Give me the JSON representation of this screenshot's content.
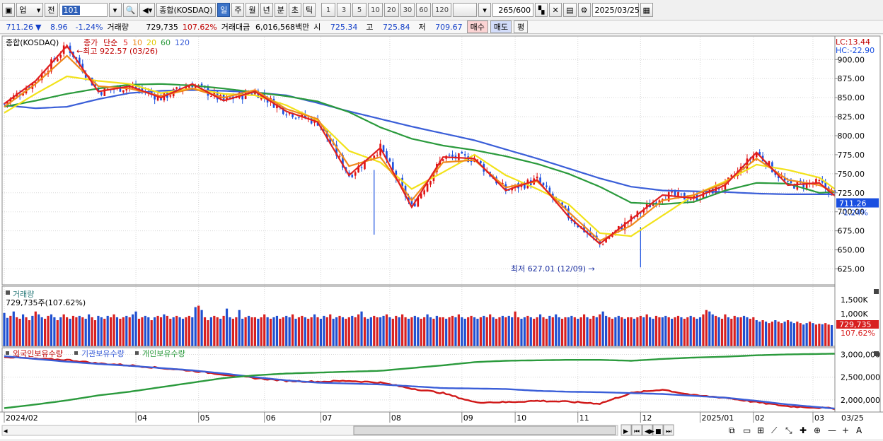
{
  "toolbar": {
    "market": "업",
    "prev": "전",
    "code": "101",
    "name": "종합(KOSDAQ)",
    "periods": [
      "일",
      "주",
      "월",
      "년",
      "분",
      "초",
      "틱"
    ],
    "selected_period": "일",
    "intervals": [
      "1",
      "3",
      "5",
      "10",
      "20",
      "30",
      "60",
      "120"
    ],
    "count": "265",
    "count_total": "/600",
    "date": "2025/03/25"
  },
  "quote": {
    "price": "711.26",
    "arrow": "▼",
    "change": "8.96",
    "change_pct": "-1.24%",
    "volume_label": "거래량",
    "volume": "729,735",
    "volume_ratio": "107.62%",
    "amount_label": "거래대금",
    "amount": "6,016,568백만",
    "open_label": "시",
    "open": "725.34",
    "high_label": "고",
    "high": "725.84",
    "low_label": "저",
    "low": "709.67",
    "buy": "매수",
    "sell": "매도",
    "avg": "평"
  },
  "chart_data": [
    {
      "type": "line",
      "title": "종합(KOSDAQ)",
      "legend": [
        "종가",
        "단순",
        "5",
        "10",
        "20",
        "60",
        "120"
      ],
      "legend_colors": {
        "close": "#c00000",
        "ma5": "#e02020",
        "ma10": "#f08a1c",
        "ma20": "#f2e21a",
        "ma60": "#2a9a3c",
        "ma120": "#3a5ed8"
      },
      "x_ticks": [
        "2024/02",
        "04",
        "05",
        "06",
        "07",
        "08",
        "09",
        "10",
        "11",
        "12",
        "2025/01",
        "02",
        "03",
        "03/25"
      ],
      "y_ticks": [
        625,
        650,
        675,
        700,
        725,
        750,
        775,
        800,
        825,
        850,
        875,
        900
      ],
      "ylim": [
        605,
        930
      ],
      "lc": "LC:13.44",
      "hc": "HC:-22.90",
      "current_price": "711.26",
      "current_pct": "-1.24%",
      "annotations": {
        "high": "최고 922.57 (03/26)",
        "low": "최저 627.01 (12/09)"
      },
      "series": [
        {
          "name": "120",
          "color": "#3a5ed8",
          "x": [
            0,
            10,
            20,
            30,
            40,
            50,
            60,
            70,
            80,
            90,
            100,
            110,
            120,
            130,
            140,
            150,
            160,
            170,
            180,
            190,
            200,
            210,
            220,
            230,
            240,
            250,
            260,
            265
          ],
          "values": [
            840,
            836,
            838,
            848,
            856,
            859,
            860,
            859,
            857,
            853,
            843,
            832,
            822,
            812,
            803,
            794,
            782,
            770,
            757,
            744,
            733,
            728,
            727,
            726,
            724,
            723,
            723,
            723
          ]
        },
        {
          "name": "60",
          "color": "#2a9a3c",
          "x": [
            0,
            10,
            20,
            30,
            40,
            50,
            60,
            70,
            80,
            90,
            100,
            110,
            120,
            130,
            140,
            150,
            160,
            170,
            180,
            190,
            200,
            210,
            220,
            230,
            240,
            250,
            260,
            265
          ],
          "values": [
            838,
            846,
            855,
            862,
            867,
            868,
            866,
            862,
            857,
            852,
            845,
            831,
            811,
            796,
            787,
            781,
            773,
            763,
            750,
            733,
            712,
            710,
            713,
            728,
            738,
            737,
            725,
            726
          ]
        },
        {
          "name": "20",
          "color": "#f2e21a",
          "x": [
            0,
            10,
            20,
            30,
            40,
            50,
            60,
            70,
            80,
            90,
            100,
            110,
            120,
            130,
            140,
            150,
            160,
            170,
            180,
            190,
            200,
            210,
            220,
            230,
            240,
            250,
            260,
            265
          ],
          "values": [
            830,
            855,
            878,
            872,
            868,
            856,
            862,
            855,
            853,
            840,
            820,
            780,
            765,
            730,
            752,
            775,
            748,
            730,
            710,
            672,
            668,
            695,
            722,
            740,
            762,
            755,
            745,
            730
          ]
        },
        {
          "name": "10",
          "color": "#f08a1c",
          "x": [
            0,
            10,
            20,
            30,
            40,
            50,
            60,
            70,
            80,
            90,
            100,
            110,
            120,
            130,
            140,
            150,
            160,
            170,
            180,
            190,
            200,
            210,
            220,
            230,
            240,
            250,
            260,
            265
          ],
          "values": [
            838,
            868,
            905,
            865,
            862,
            852,
            862,
            850,
            860,
            835,
            822,
            760,
            772,
            715,
            765,
            768,
            732,
            740,
            700,
            662,
            682,
            715,
            722,
            738,
            770,
            742,
            735,
            726
          ]
        },
        {
          "name": "5",
          "color": "#e02020",
          "x": [
            0,
            10,
            20,
            30,
            40,
            50,
            60,
            70,
            80,
            90,
            100,
            110,
            120,
            130,
            140,
            150,
            160,
            170,
            180,
            190,
            200,
            210,
            220,
            230,
            240,
            250,
            260,
            265
          ],
          "values": [
            842,
            872,
            918,
            858,
            865,
            850,
            868,
            846,
            858,
            832,
            818,
            748,
            784,
            706,
            772,
            770,
            728,
            742,
            694,
            658,
            690,
            722,
            718,
            735,
            778,
            735,
            738,
            721
          ]
        }
      ]
    },
    {
      "type": "bar",
      "title": "거래량",
      "label": "729,735주(107.62%)",
      "y_ticks": [
        "1,500K",
        "1,000K"
      ],
      "current": "729,735",
      "current_pct": "107.62%",
      "ylim": [
        0,
        1900
      ],
      "values": [
        1150,
        980,
        1050,
        1200,
        1000,
        950,
        1100,
        1000,
        900,
        1050,
        1200,
        1100,
        1000,
        950,
        1050,
        1100,
        1000,
        900,
        1000,
        1100,
        1000,
        950,
        1050,
        1000,
        1050,
        1000,
        950,
        1100,
        1000,
        900,
        1050,
        1000,
        950,
        1050,
        1000,
        1100,
        1000,
        950,
        1000,
        1050,
        1000,
        1100,
        1200,
        950,
        1000,
        1050,
        1000,
        900,
        1000,
        1050,
        1000,
        1100,
        1050,
        950,
        1000,
        1050,
        1000,
        950,
        1000,
        1050,
        1000,
        1350,
        1400,
        1250,
        1000,
        900,
        1000,
        1050,
        1000,
        950,
        1050,
        1300,
        1000,
        950,
        1000,
        1250,
        950,
        1000,
        1050,
        1000,
        1000,
        950,
        1000,
        1100,
        1000,
        950,
        1000,
        1050,
        950,
        1000,
        1050,
        1000,
        1100,
        950,
        1000,
        1050,
        1000,
        950,
        1000,
        1100,
        1000,
        950,
        1050,
        1000,
        1100,
        950,
        1000,
        1050,
        1000,
        950,
        1000,
        1050,
        1000,
        1100,
        1200,
        1000,
        950,
        1000,
        1050,
        1000,
        1000,
        1050,
        1100,
        1000,
        950,
        1050,
        1000,
        1100,
        1000,
        950,
        1000,
        1050,
        1000,
        950,
        1000,
        1100,
        1000,
        950,
        1050,
        1000,
        1000,
        950,
        1000,
        1050,
        1000,
        1100,
        1000,
        950,
        1000,
        1050,
        1000,
        950,
        1000,
        1050,
        1000,
        1100,
        1000,
        950,
        1000,
        1050,
        1000,
        1050,
        1000,
        1200,
        1000,
        950,
        1000,
        1050,
        1000,
        950,
        1000,
        1100,
        1000,
        950,
        1050,
        1000,
        1100,
        1000,
        950,
        1000,
        1000,
        1050,
        1000,
        950,
        1000,
        1100,
        1000,
        950,
        1050,
        1000,
        1100,
        1200,
        1050,
        1000,
        950,
        1000,
        1050,
        1000,
        950,
        1000,
        1000,
        950,
        1000,
        1050,
        1000,
        1100,
        1000,
        950,
        1050,
        1000,
        1000,
        1050,
        1000,
        950,
        1000,
        1050,
        1000,
        950,
        1000,
        1050,
        1000,
        950,
        1000,
        1100,
        1250,
        1200,
        1100,
        1050,
        1000,
        950,
        1100,
        1000,
        950,
        1050,
        1000,
        1000,
        1050,
        1000,
        950,
        1000,
        900,
        850,
        900,
        850,
        800,
        850,
        900,
        850,
        800,
        850,
        900,
        850,
        800,
        850,
        800,
        750,
        800,
        850,
        800,
        750,
        780,
        760,
        800,
        750,
        730
      ]
    },
    {
      "type": "line",
      "legend": [
        "외국인보유수량",
        "기관보유수량",
        "개인보유수량"
      ],
      "y_ticks": [
        "3,000,000",
        "2,500,000",
        "2,000,000"
      ],
      "ylim": [
        1750000,
        3100000
      ],
      "series": [
        {
          "name": "외국인보유수량",
          "color": "#d01818",
          "x": [
            0,
            10,
            20,
            30,
            40,
            50,
            60,
            70,
            80,
            90,
            100,
            110,
            120,
            130,
            140,
            150,
            160,
            170,
            180,
            190,
            200,
            210,
            220,
            230,
            240,
            250,
            260,
            265
          ],
          "values": [
            2950000,
            2900000,
            2880000,
            2800000,
            2760000,
            2700000,
            2640000,
            2560000,
            2480000,
            2420000,
            2400000,
            2420000,
            2380000,
            2250000,
            2150000,
            1950000,
            1950000,
            1980000,
            1960000,
            1920000,
            2150000,
            2230000,
            2100000,
            2050000,
            1950000,
            1860000,
            1830000,
            1810000
          ]
        },
        {
          "name": "기관보유수량",
          "color": "#3a5ed8",
          "x": [
            0,
            10,
            20,
            30,
            40,
            50,
            60,
            70,
            80,
            90,
            100,
            110,
            120,
            130,
            140,
            150,
            160,
            170,
            180,
            190,
            200,
            210,
            220,
            230,
            240,
            250,
            260,
            265
          ],
          "values": [
            2960000,
            2900000,
            2840000,
            2790000,
            2750000,
            2700000,
            2650000,
            2580000,
            2500000,
            2430000,
            2380000,
            2360000,
            2340000,
            2300000,
            2260000,
            2250000,
            2240000,
            2200000,
            2180000,
            2170000,
            2150000,
            2130000,
            2090000,
            2050000,
            1980000,
            1900000,
            1840000,
            1810000
          ]
        },
        {
          "name": "개인보유수량",
          "color": "#2a9a3c",
          "x": [
            0,
            10,
            20,
            30,
            40,
            50,
            60,
            70,
            80,
            90,
            100,
            110,
            120,
            130,
            140,
            150,
            160,
            170,
            180,
            190,
            200,
            210,
            220,
            230,
            240,
            250,
            260,
            265
          ],
          "values": [
            1820000,
            1900000,
            1990000,
            2100000,
            2180000,
            2280000,
            2380000,
            2480000,
            2540000,
            2580000,
            2600000,
            2620000,
            2640000,
            2700000,
            2760000,
            2830000,
            2860000,
            2870000,
            2880000,
            2880000,
            2860000,
            2900000,
            2930000,
            2950000,
            2980000,
            3000000,
            3010000,
            3015000
          ]
        }
      ]
    }
  ]
}
